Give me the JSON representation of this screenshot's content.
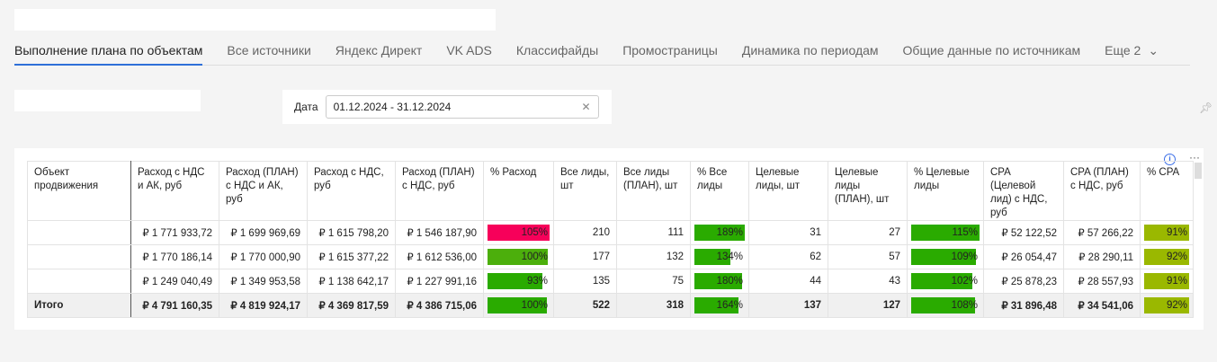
{
  "tabs": [
    "Выполнение плана по объектам",
    "Все источники",
    "Яндекс Директ",
    "VK ADS",
    "Классифайды",
    "Промостраницы",
    "Динамика по периодам",
    "Общие данные по источникам"
  ],
  "more_tab": "Еще 2",
  "filter": {
    "label": "Дата",
    "value": "01.12.2024 - 31.12.2024"
  },
  "colors": {
    "red": "#f7005a",
    "green": "#2aab00",
    "green2": "#4caf0c",
    "olive": "#9ab800",
    "accent": "#2e6fd8"
  },
  "table": {
    "headers": [
      "Объект продвижения",
      "Расход с НДС и АК, руб",
      "Расход (ПЛАН) с НДС и АК, руб",
      "Расход с НДС, руб",
      "Расход (ПЛАН) с НДС, руб",
      "% Расход",
      "Все лиды, шт",
      "Все лиды (ПЛАН), шт",
      "% Все лиды",
      "Целевые лиды, шт",
      "Целевые лиды (ПЛАН), шт",
      "% Целевые лиды",
      "CPA (Целевой лид) с НДС, руб",
      "CPA (ПЛАН) с НДС, руб",
      "% CPA"
    ],
    "rows": [
      {
        "name": "",
        "c": [
          "₽ 1 771 933,72",
          "₽ 1 699 969,69",
          "₽ 1 615 798,20",
          "₽ 1 546 187,90",
          "105%",
          "210",
          "111",
          "189%",
          "31",
          "27",
          "115%",
          "₽ 52 122,52",
          "₽ 57 266,22",
          "91%"
        ],
        "fill": [
          1.0,
          1.0,
          1.0,
          1.0
        ],
        "col": [
          "red",
          "green",
          "green",
          "olive"
        ]
      },
      {
        "name": "",
        "c": [
          "₽ 1 770 186,14",
          "₽ 1 770 000,90",
          "₽ 1 615 377,22",
          "₽ 1 612 536,00",
          "100%",
          "177",
          "132",
          "134%",
          "62",
          "57",
          "109%",
          "₽ 26 054,47",
          "₽ 28 290,11",
          "92%"
        ],
        "fill": [
          0.97,
          0.71,
          0.95,
          1.0
        ],
        "col": [
          "green2",
          "green",
          "green",
          "olive"
        ]
      },
      {
        "name": "",
        "c": [
          "₽ 1 249 040,49",
          "₽ 1 349 953,58",
          "₽ 1 138 642,17",
          "₽ 1 227 991,16",
          "93%",
          "135",
          "75",
          "180%",
          "44",
          "43",
          "102%",
          "₽ 25 878,23",
          "₽ 28 557,93",
          "91%"
        ],
        "fill": [
          0.89,
          0.95,
          0.89,
          1.0
        ],
        "col": [
          "green",
          "green",
          "green",
          "olive"
        ]
      },
      {
        "name": "Итого",
        "c": [
          "₽ 4 791 160,35",
          "₽ 4 819 924,17",
          "₽ 4 369 817,59",
          "₽ 4 386 715,06",
          "100%",
          "522",
          "318",
          "164%",
          "137",
          "127",
          "108%",
          "₽ 31 896,48",
          "₽ 34 541,06",
          "92%"
        ],
        "fill": [
          0.95,
          0.87,
          0.94,
          1.0
        ],
        "col": [
          "green",
          "green",
          "green",
          "olive"
        ]
      }
    ]
  }
}
